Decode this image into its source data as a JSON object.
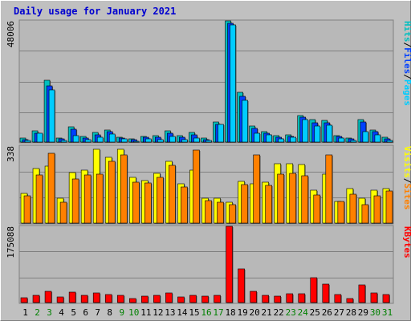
{
  "chart_data": {
    "type": "bar",
    "title": "Daily usage for January 2021",
    "categories": [
      "1",
      "2",
      "3",
      "4",
      "5",
      "6",
      "7",
      "8",
      "9",
      "10",
      "11",
      "12",
      "13",
      "14",
      "15",
      "16",
      "17",
      "18",
      "19",
      "20",
      "21",
      "22",
      "23",
      "24",
      "25",
      "26",
      "27",
      "28",
      "29",
      "30",
      "31"
    ],
    "weekend_days": [
      "2",
      "3",
      "9",
      "10",
      "16",
      "17",
      "23",
      "24",
      "30",
      "31"
    ],
    "colors": {
      "hits": "#00bfbf",
      "files": "#0040ff",
      "pages": "#00ccff",
      "visits": "#ffff00",
      "sites": "#ff8000",
      "kbytes": "#ff0000",
      "weekday_label": "#000000",
      "weekend_label": "#008000"
    },
    "panels": [
      {
        "id": "top",
        "ymax_label": "48006",
        "ymax": 48006,
        "axis_labels": [
          {
            "text": "Hits",
            "color": "#00bfbf"
          },
          {
            "text": "/",
            "color": "#000000"
          },
          {
            "text": "Files",
            "color": "#0040ff"
          },
          {
            "text": "/",
            "color": "#000000"
          },
          {
            "text": "Pages",
            "color": "#00ccff"
          }
        ],
        "series": [
          {
            "name": "Hits",
            "color": "#00bfbf",
            "values": [
              1500,
              4300,
              24400,
              1700,
              6000,
              2200,
              3700,
              4700,
              2000,
              1300,
              2300,
              2400,
              4400,
              2500,
              3700,
              1500,
              8000,
              48006,
              19800,
              6300,
              4200,
              2600,
              2900,
              10500,
              9000,
              8600,
              2700,
              1600,
              8800,
              4800,
              1800
            ]
          },
          {
            "name": "Files",
            "color": "#0040ff",
            "values": [
              1100,
              3600,
              22400,
              1300,
              5000,
              1600,
              2900,
              4200,
              1600,
              1000,
              1800,
              1800,
              3500,
              1800,
              2900,
              1100,
              6900,
              47000,
              18000,
              5500,
              3500,
              2000,
              2300,
              9800,
              7600,
              7500,
              2200,
              1200,
              8000,
              4000,
              1400
            ]
          },
          {
            "name": "Pages",
            "color": "#00ccff",
            "values": [
              700,
              3400,
              20800,
              700,
              2600,
              1000,
              1900,
              3100,
              1200,
              300,
              1300,
              1100,
              2100,
              800,
              1600,
              600,
              6900,
              46300,
              16600,
              3500,
              2900,
              1300,
              1800,
              8800,
              6400,
              6800,
              1500,
              600,
              4200,
              3000,
              600
            ]
          }
        ]
      },
      {
        "id": "middle",
        "ymax_label": "338",
        "ymax": 338,
        "axis_labels": [
          {
            "text": "Visits",
            "color": "#ffff00"
          },
          {
            "text": "/",
            "color": "#000000"
          },
          {
            "text": "Sites",
            "color": "#ff8000"
          }
        ],
        "series": [
          {
            "name": "Visits",
            "color": "#ffff00",
            "values": [
              132,
              238,
              250,
              108,
              222,
              232,
              324,
              290,
              324,
              200,
              188,
              220,
              270,
              172,
              231,
              110,
              109,
              92,
              182,
              173,
              180,
              262,
              262,
              257,
              143,
              214,
              96,
              152,
              108,
              143,
              151
            ]
          },
          {
            "name": "Sites",
            "color": "#ff8000",
            "values": [
              118,
              210,
              306,
              92,
              192,
              210,
              216,
              272,
              300,
              180,
              176,
              200,
              252,
              160,
              320,
              100,
              92,
              82,
              168,
              300,
              165,
              214,
              218,
              208,
              122,
              300,
              96,
              128,
              80,
              118,
              140
            ]
          }
        ]
      },
      {
        "id": "bottom",
        "ymax_label": "175088",
        "ymax": 175088,
        "axis_labels": [
          {
            "text": "KBytes",
            "color": "#ff0000"
          }
        ],
        "series": [
          {
            "name": "KBytes",
            "color": "#ff0000",
            "values": [
              11000,
              17000,
              26000,
              13000,
              24000,
              17000,
              23000,
              18000,
              17000,
              10000,
              15000,
              16000,
              22000,
              13000,
              17000,
              15000,
              17000,
              175088,
              78000,
              26000,
              16000,
              15000,
              21000,
              21000,
              57000,
              42000,
              18000,
              10000,
              40000,
              23000,
              18000
            ]
          }
        ]
      }
    ]
  }
}
